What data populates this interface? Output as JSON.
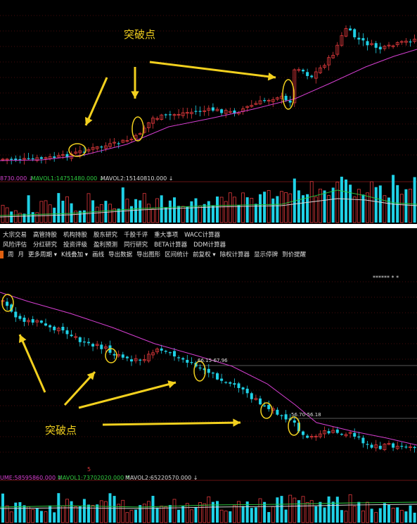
{
  "top_chart": {
    "annotation_label": "突破点",
    "vol_label_partial": "8730.000 ↓",
    "mavol1_label": "MAVOL1:14751480.000 ↓",
    "mavol2_label": "MAVOL2:15140810.000 ↓"
  },
  "toolbar": {
    "row1": [
      "大宗交易",
      "高管持股",
      "机构持股",
      "股东研究",
      "千股千评",
      "重大事项",
      "WACC计算器"
    ],
    "row2": [
      "风险评估",
      "分红研究",
      "投资评级",
      "盈利预测",
      "同行研究",
      "BETA计算器",
      "DDM计算器"
    ],
    "row3": [
      "周",
      "月",
      "更多周期 ▾",
      "K线叠加 ▾",
      "画线",
      "导出数据",
      "导出图形",
      "区间统计",
      "前复权 ▾",
      "除权计算器",
      "显示停牌",
      "到价提醒"
    ]
  },
  "bottom_chart": {
    "annotation_label": "突破点",
    "header_marks": "******   *   *",
    "range_label_1": "66.15-67.96",
    "range_label_2": "56.70-56.18",
    "small_mark": "5",
    "vol_label_partial": "UME:58595860.000 ↓",
    "mavol1_label": "MAVOL1:73702020.000 ↑",
    "mavol2_label": "MAVOL2:65220570.000 ↓"
  },
  "colors": {
    "up": "#e0393c",
    "down": "#1fd1e6",
    "ma_line": "#d53fd1",
    "annotation": "#f2d01e",
    "mavol1": "#2ecc40",
    "mavol2": "#d9d9d9",
    "vol_text": "#d53fd1",
    "grid": "#8b1a1a"
  }
}
